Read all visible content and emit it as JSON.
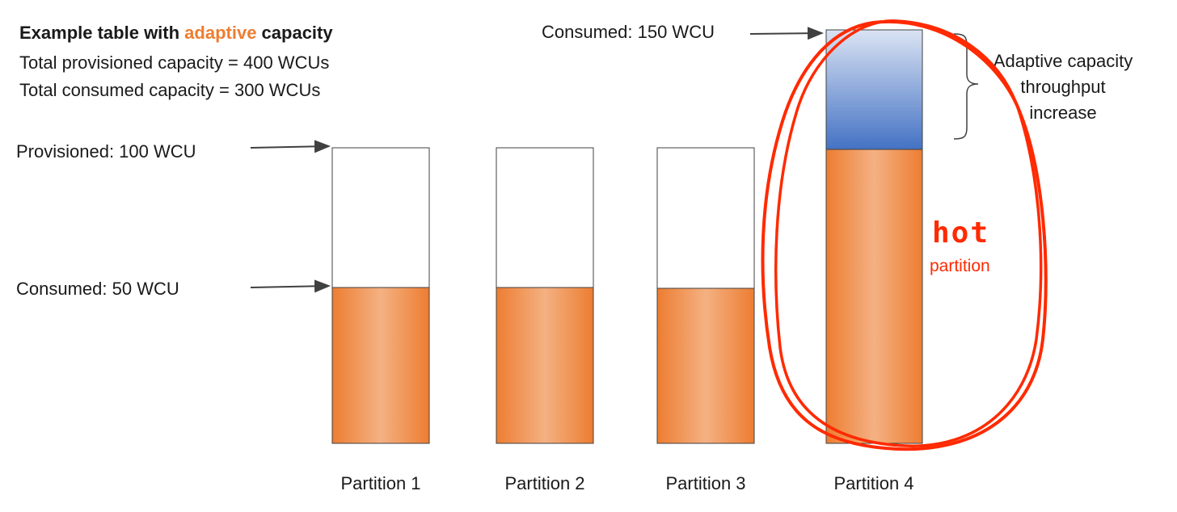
{
  "header": {
    "title_prefix": "Example table with ",
    "title_accent": "adaptive",
    "title_suffix": " capacity",
    "line1": "Total provisioned capacity = 400 WCUs",
    "line2": "Total consumed capacity = 300 WCUs"
  },
  "annotations": {
    "provisioned": "Provisioned: 100 WCU",
    "consumed": "Consumed: 50 WCU",
    "consumed_hot": "Consumed: 150 WCU",
    "adaptive_line1": "Adaptive capacity",
    "adaptive_line2": "throughput",
    "adaptive_line3": "increase",
    "hot_word": "hot",
    "hot_sub": "partition"
  },
  "partitions": [
    {
      "label": "Partition 1",
      "provisioned_wcu": 100,
      "consumed_wcu": 50
    },
    {
      "label": "Partition 2",
      "provisioned_wcu": 100,
      "consumed_wcu": 50
    },
    {
      "label": "Partition 3",
      "provisioned_wcu": 100,
      "consumed_wcu": 50
    },
    {
      "label": "Partition 4",
      "provisioned_wcu": 100,
      "consumed_wcu": 150
    }
  ],
  "colors": {
    "accent": "#ED7D31",
    "bar_orange_dark": "#ED7D31",
    "bar_orange_light": "#F4B183",
    "adaptive_blue_dark": "#4472C4",
    "adaptive_blue_light": "#DAE3F3",
    "hot_red": "#FF2A00",
    "outline": "#404040"
  }
}
